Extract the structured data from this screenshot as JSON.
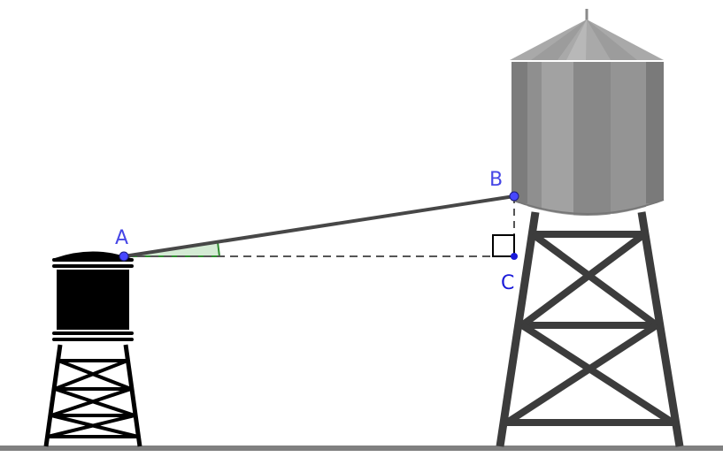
{
  "diagram": {
    "points": {
      "A": {
        "label": "A"
      },
      "B": {
        "label": "B"
      },
      "C": {
        "label": "C"
      }
    },
    "colors": {
      "point": "#4747ff",
      "label_AB": "#4646e6",
      "label_C": "#1a1ad9",
      "segment": "#474747",
      "dashed": "#555555",
      "angle_fill": "#cde8cd",
      "angle_stroke": "#2e8b2e",
      "ground": "#808080",
      "small_tower": "#000000",
      "big_tower_frame": "#3c3c3c",
      "big_tank_base": "#8a8a8a"
    }
  }
}
